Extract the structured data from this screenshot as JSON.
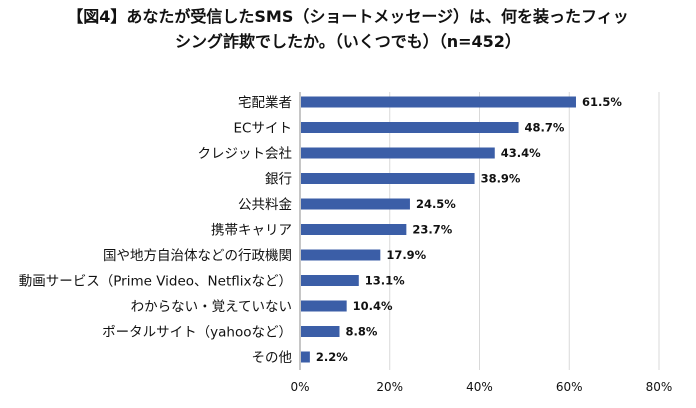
{
  "title_lines": [
    "【図4】あなたが受信したSMS（ショートメッセージ）は、何を装ったフィッ",
    "シング詐欺でしたか。（いくつでも）（n=452）"
  ],
  "colors": {
    "bar": "#3b5ea7",
    "axis": "#8c8c8c"
  },
  "chart_data": {
    "type": "bar",
    "orientation": "horizontal",
    "title": "【図4】あなたが受信したSMS（ショートメッセージ）は、何を装ったフィッシング詐欺でしたか。（いくつでも）（n=452）",
    "categories": [
      "宅配業者",
      "ECサイト",
      "クレジット会社",
      "銀行",
      "公共料金",
      "携帯キャリア",
      "国や地方自治体などの行政機関",
      "動画サービス（Prime Video、Netflixなど）",
      "わからない・覚えていない",
      "ポータルサイト（yahooなど）",
      "その他"
    ],
    "values": [
      61.5,
      48.7,
      43.4,
      38.9,
      24.5,
      23.7,
      17.9,
      13.1,
      10.4,
      8.8,
      2.2
    ],
    "value_labels": [
      "61.5%",
      "48.7%",
      "43.4%",
      "38.9%",
      "24.5%",
      "23.7%",
      "17.9%",
      "13.1%",
      "10.4%",
      "8.8%",
      "2.2%"
    ],
    "xticks": [
      "0%",
      "20%",
      "40%",
      "60%",
      "80%"
    ],
    "xlim": [
      0,
      80
    ],
    "grid": true
  }
}
